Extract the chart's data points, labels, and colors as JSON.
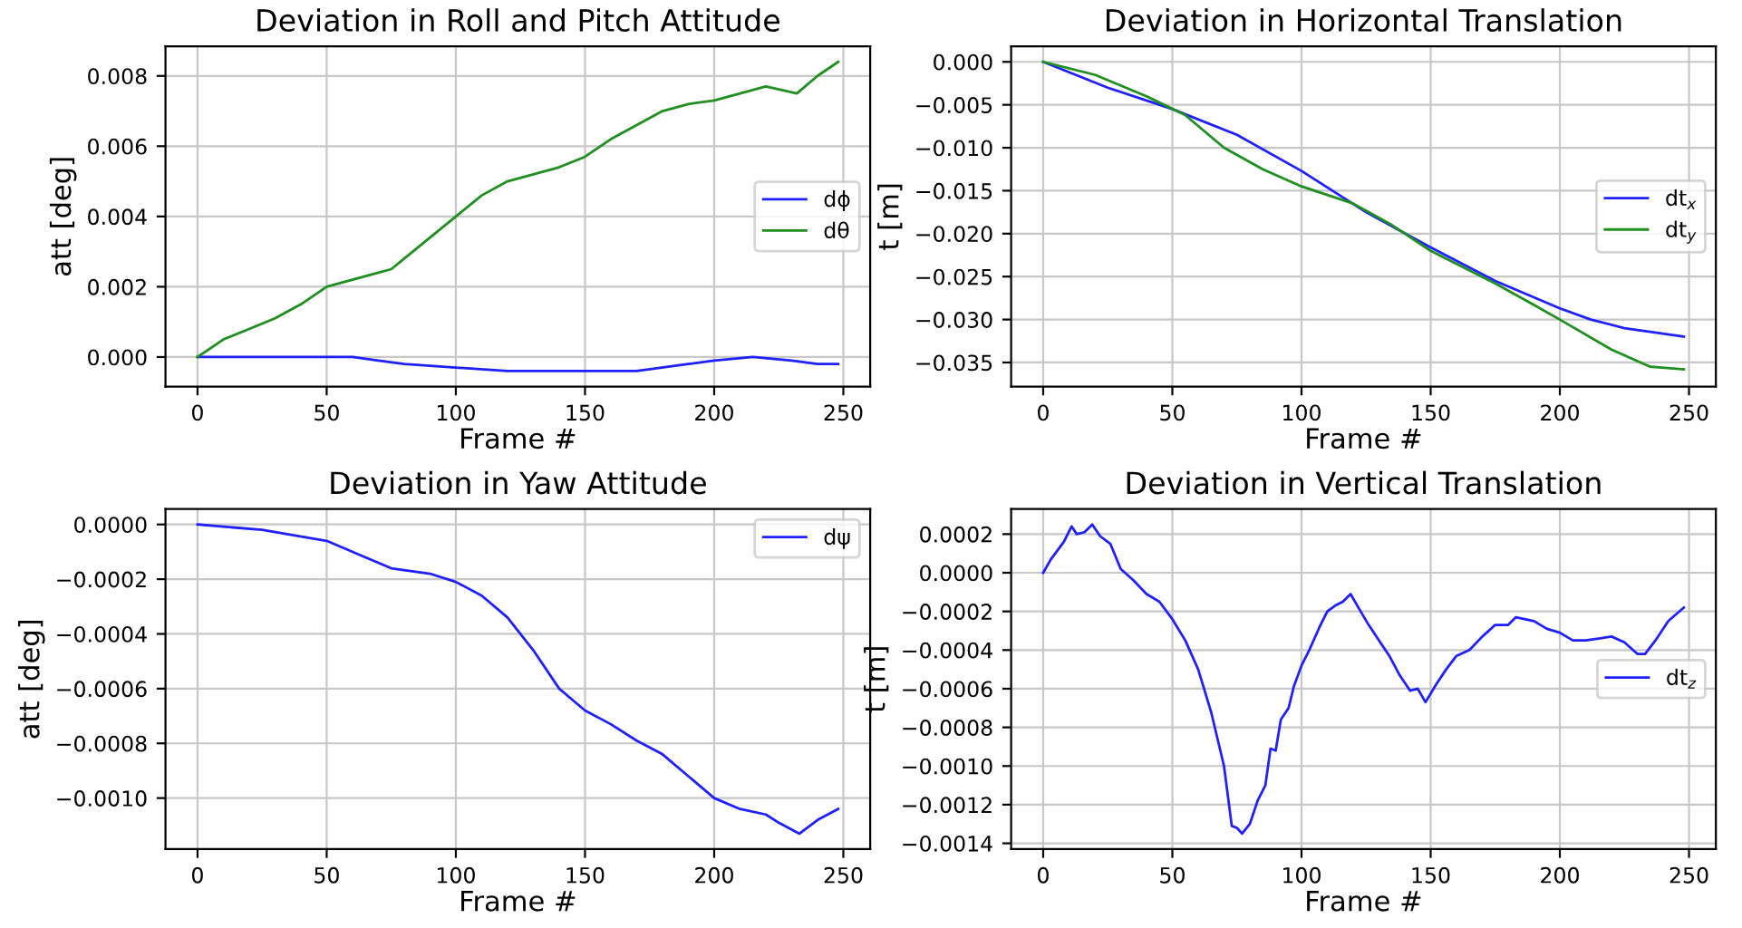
{
  "chart_data": [
    {
      "type": "line",
      "title": "Deviation in Roll and Pitch Attitude",
      "xlabel": "Frame #",
      "ylabel": "att [deg]",
      "xlim": [
        -12.4,
        260.4
      ],
      "xticks": [
        0,
        50,
        100,
        150,
        200,
        250
      ],
      "ylim": [
        -0.00084,
        0.00884
      ],
      "yticks": [
        {
          "value": 0,
          "label": "0.000"
        },
        {
          "value": 0.002,
          "label": "0.002"
        },
        {
          "value": 0.004,
          "label": "0.004"
        },
        {
          "value": 0.006,
          "label": "0.006"
        },
        {
          "value": 0.008,
          "label": "0.008"
        }
      ],
      "grid": true,
      "legend": "right",
      "line_style": "solid",
      "marker": "none",
      "series": [
        {
          "name": "dϕ",
          "color": "#2020ff",
          "x": [
            0,
            20,
            40,
            60,
            70,
            80,
            100,
            120,
            150,
            170,
            190,
            200,
            215,
            230,
            240,
            248
          ],
          "values": [
            0,
            0,
            0,
            0,
            -0.0001,
            -0.0002,
            -0.0003,
            -0.0004,
            -0.0004,
            -0.0004,
            -0.0002,
            -0.0001,
            0,
            -0.0001,
            -0.0002,
            -0.0002
          ]
        },
        {
          "name": "dθ",
          "color": "#1f8f1f",
          "x": [
            0,
            10,
            20,
            30,
            40,
            50,
            60,
            70,
            75,
            80,
            90,
            100,
            110,
            120,
            130,
            140,
            150,
            160,
            170,
            180,
            190,
            200,
            210,
            220,
            232,
            240,
            248
          ],
          "values": [
            0,
            0.0005,
            0.0008,
            0.0011,
            0.0015,
            0.002,
            0.0022,
            0.0024,
            0.0025,
            0.0028,
            0.0034,
            0.004,
            0.0046,
            0.005,
            0.0052,
            0.0054,
            0.0057,
            0.0062,
            0.0066,
            0.007,
            0.0072,
            0.0073,
            0.0075,
            0.0077,
            0.0075,
            0.008,
            0.0084
          ]
        }
      ]
    },
    {
      "type": "line",
      "title": "Deviation in Horizontal Translation",
      "xlabel": "Frame #",
      "ylabel": "t [m]",
      "xlim": [
        -12.4,
        260.4
      ],
      "xticks": [
        0,
        50,
        100,
        150,
        200,
        250
      ],
      "ylim": [
        -0.0378,
        0.0018
      ],
      "yticks": [
        {
          "value": 0,
          "label": "0.000"
        },
        {
          "value": -0.005,
          "label": "−0.005"
        },
        {
          "value": -0.01,
          "label": "−0.010"
        },
        {
          "value": -0.015,
          "label": "−0.015"
        },
        {
          "value": -0.02,
          "label": "−0.020"
        },
        {
          "value": -0.025,
          "label": "−0.025"
        },
        {
          "value": -0.03,
          "label": "−0.030"
        },
        {
          "value": -0.035,
          "label": "−0.035"
        }
      ],
      "grid": true,
      "legend": "right",
      "line_style": "solid",
      "marker": "none",
      "series": [
        {
          "name": "dt$_{x}$",
          "color": "#2020ff",
          "x": [
            0,
            25,
            50,
            75,
            100,
            125,
            150,
            175,
            200,
            212,
            225,
            248
          ],
          "values": [
            0,
            -0.003,
            -0.0055,
            -0.0085,
            -0.0127,
            -0.0175,
            -0.0216,
            -0.0255,
            -0.0287,
            -0.03,
            -0.031,
            -0.032
          ]
        },
        {
          "name": "dt$_{y}$",
          "color": "#1f8f1f",
          "x": [
            0,
            20,
            40,
            55,
            70,
            85,
            100,
            120,
            135,
            150,
            175,
            190,
            200,
            220,
            235,
            248
          ],
          "values": [
            0,
            -0.0015,
            -0.004,
            -0.0062,
            -0.01,
            -0.0125,
            -0.0145,
            -0.0165,
            -0.019,
            -0.022,
            -0.0258,
            -0.0283,
            -0.03,
            -0.0335,
            -0.0355,
            -0.0358
          ]
        }
      ]
    },
    {
      "type": "line",
      "title": "Deviation in Yaw Attitude",
      "xlabel": "Frame #",
      "ylabel": "att [deg]",
      "xlim": [
        -12.4,
        260.4
      ],
      "xticks": [
        0,
        50,
        100,
        150,
        200,
        250
      ],
      "ylim": [
        -0.0011865,
        5.65e-05
      ],
      "yticks": [
        {
          "value": 0,
          "label": "0.0000"
        },
        {
          "value": -0.0002,
          "label": "−0.0002"
        },
        {
          "value": -0.0004,
          "label": "−0.0004"
        },
        {
          "value": -0.0006,
          "label": "−0.0006"
        },
        {
          "value": -0.0008,
          "label": "−0.0008"
        },
        {
          "value": -0.001,
          "label": "−0.0010"
        }
      ],
      "grid": true,
      "legend": "top right",
      "line_style": "solid",
      "marker": "none",
      "series": [
        {
          "name": "dψ",
          "color": "#2020ff",
          "x": [
            0,
            25,
            50,
            65,
            75,
            90,
            100,
            110,
            120,
            130,
            140,
            150,
            160,
            170,
            180,
            190,
            200,
            210,
            220,
            225,
            233,
            240,
            248
          ],
          "values": [
            0,
            -2e-05,
            -6e-05,
            -0.00012,
            -0.00016,
            -0.00018,
            -0.00021,
            -0.00026,
            -0.00034,
            -0.00046,
            -0.0006,
            -0.00068,
            -0.00073,
            -0.00079,
            -0.00084,
            -0.00092,
            -0.001,
            -0.00104,
            -0.00106,
            -0.00109,
            -0.00113,
            -0.00108,
            -0.00104
          ]
        }
      ]
    },
    {
      "type": "line",
      "title": "Deviation in Vertical Translation",
      "xlabel": "Frame #",
      "ylabel": "t [m]",
      "xlim": [
        -12.4,
        260.4
      ],
      "xticks": [
        0,
        50,
        100,
        150,
        200,
        250
      ],
      "ylim": [
        -0.00143,
        0.00033
      ],
      "yticks": [
        {
          "value": 0.0002,
          "label": "0.0002"
        },
        {
          "value": 0,
          "label": "0.0000"
        },
        {
          "value": -0.0002,
          "label": "−0.0002"
        },
        {
          "value": -0.0004,
          "label": "−0.0004"
        },
        {
          "value": -0.0006,
          "label": "−0.0006"
        },
        {
          "value": -0.0008,
          "label": "−0.0008"
        },
        {
          "value": -0.001,
          "label": "−0.0010"
        },
        {
          "value": -0.0012,
          "label": "−0.0012"
        },
        {
          "value": -0.0014,
          "label": "−0.0014"
        }
      ],
      "grid": true,
      "legend": "right",
      "line_style": "solid",
      "marker": "none",
      "series": [
        {
          "name": "dt$_{z}$",
          "color": "#2020ff",
          "x": [
            0,
            3,
            8,
            11,
            13,
            16,
            19,
            22,
            26,
            30,
            35,
            40,
            45,
            50,
            55,
            60,
            65,
            70,
            73,
            75,
            77,
            80,
            83,
            86,
            88,
            90,
            92,
            95,
            97,
            100,
            103,
            107,
            110,
            113,
            116,
            119,
            122,
            126,
            130,
            134,
            138,
            142,
            145,
            148,
            152,
            156,
            160,
            165,
            170,
            175,
            180,
            183,
            190,
            195,
            200,
            205,
            210,
            215,
            220,
            225,
            230,
            233,
            237,
            242,
            248
          ],
          "values": [
            0,
            7e-05,
            0.00016,
            0.00024,
            0.0002,
            0.00021,
            0.00025,
            0.00019,
            0.00015,
            2e-05,
            -4e-05,
            -0.00011,
            -0.00015,
            -0.00024,
            -0.00035,
            -0.0005,
            -0.00072,
            -0.001,
            -0.00131,
            -0.00132,
            -0.00135,
            -0.0013,
            -0.00118,
            -0.0011,
            -0.00091,
            -0.00092,
            -0.00076,
            -0.0007,
            -0.00059,
            -0.00048,
            -0.0004,
            -0.00028,
            -0.0002,
            -0.00017,
            -0.00015,
            -0.00011,
            -0.00018,
            -0.00027,
            -0.00035,
            -0.00043,
            -0.00053,
            -0.00061,
            -0.0006,
            -0.00067,
            -0.00058,
            -0.0005,
            -0.00043,
            -0.0004,
            -0.00033,
            -0.00027,
            -0.00027,
            -0.00023,
            -0.00025,
            -0.00029,
            -0.00031,
            -0.00035,
            -0.00035,
            -0.00034,
            -0.00033,
            -0.00036,
            -0.00042,
            -0.00042,
            -0.00035,
            -0.00025,
            -0.00018
          ]
        }
      ]
    }
  ]
}
